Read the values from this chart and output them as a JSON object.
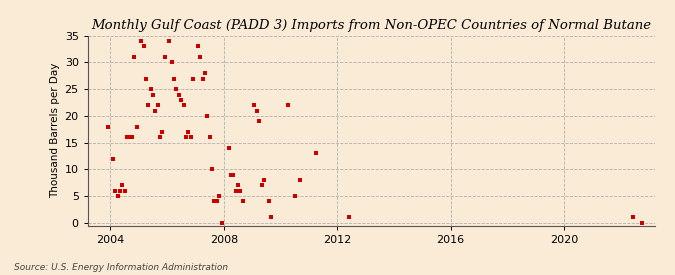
{
  "title": "Monthly Gulf Coast (PADD 3) Imports from Non-OPEC Countries of Normal Butane",
  "ylabel": "Thousand Barrels per Day",
  "source": "Source: U.S. Energy Information Administration",
  "background_color": "#faebd7",
  "plot_bg_color": "#faebd7",
  "marker_color": "#cc0000",
  "marker_size": 3.5,
  "xlim": [
    2003.2,
    2023.2
  ],
  "ylim": [
    -0.5,
    35
  ],
  "yticks": [
    0,
    5,
    10,
    15,
    20,
    25,
    30,
    35
  ],
  "xticks": [
    2004,
    2008,
    2012,
    2016,
    2020
  ],
  "data_x": [
    2003.92,
    2004.08,
    2004.17,
    2004.25,
    2004.33,
    2004.42,
    2004.5,
    2004.58,
    2004.67,
    2004.75,
    2004.83,
    2004.92,
    2005.08,
    2005.17,
    2005.25,
    2005.33,
    2005.42,
    2005.5,
    2005.58,
    2005.67,
    2005.75,
    2005.83,
    2005.92,
    2006.08,
    2006.17,
    2006.25,
    2006.33,
    2006.42,
    2006.5,
    2006.58,
    2006.67,
    2006.75,
    2006.83,
    2006.92,
    2007.08,
    2007.17,
    2007.25,
    2007.33,
    2007.42,
    2007.5,
    2007.58,
    2007.67,
    2007.75,
    2007.83,
    2007.92,
    2008.17,
    2008.25,
    2008.33,
    2008.42,
    2008.5,
    2008.58,
    2008.67,
    2009.08,
    2009.17,
    2009.25,
    2009.33,
    2009.42,
    2009.58,
    2009.67,
    2010.25,
    2010.5,
    2010.67,
    2011.25,
    2012.42,
    2022.42,
    2022.75
  ],
  "data_y": [
    18,
    12,
    6,
    5,
    6,
    7,
    6,
    16,
    16,
    16,
    31,
    18,
    34,
    33,
    27,
    22,
    25,
    24,
    21,
    22,
    16,
    17,
    31,
    34,
    30,
    27,
    25,
    24,
    23,
    22,
    16,
    17,
    16,
    27,
    33,
    31,
    27,
    28,
    20,
    16,
    10,
    4,
    4,
    5,
    0,
    14,
    9,
    9,
    6,
    7,
    6,
    4,
    22,
    21,
    19,
    7,
    8,
    4,
    1,
    22,
    5,
    8,
    13,
    1,
    1,
    0
  ]
}
